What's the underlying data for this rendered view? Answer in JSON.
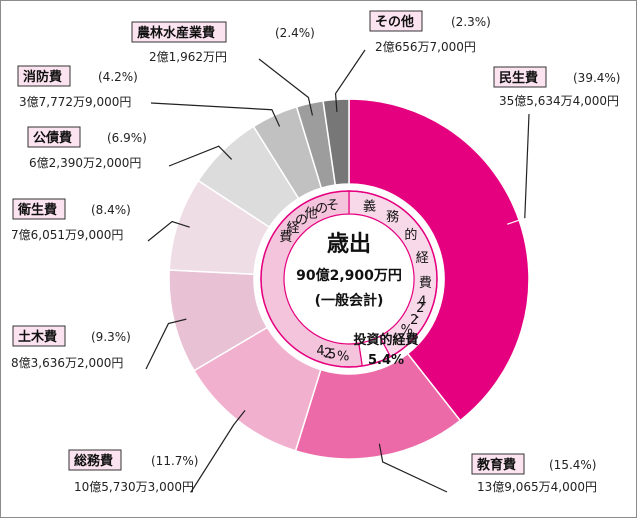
{
  "chart_data": {
    "type": "pie",
    "title": "歳出",
    "total": "90億2,900万円",
    "subtitle": "(一般会計)",
    "slices": [
      {
        "label": "民生費",
        "percent": 39.4,
        "percent_text": "(39.4%)",
        "amount": "35億5,634万4,000円",
        "color": "#e5007f"
      },
      {
        "label": "教育費",
        "percent": 15.4,
        "percent_text": "(15.4%)",
        "amount": "13億9,065万4,000円",
        "color": "#ec6aa8"
      },
      {
        "label": "総務費",
        "percent": 11.7,
        "percent_text": "(11.7%)",
        "amount": "10億5,730万3,000円",
        "color": "#f2b0cf"
      },
      {
        "label": "土木費",
        "percent": 9.3,
        "percent_text": "(9.3%)",
        "amount": "8億3,636万2,000円",
        "color": "#e8c1d4"
      },
      {
        "label": "衛生費",
        "percent": 8.4,
        "percent_text": "(8.4%)",
        "amount": "7億6,051万9,000円",
        "color": "#efdde6"
      },
      {
        "label": "公債費",
        "percent": 6.9,
        "percent_text": "(6.9%)",
        "amount": "6億2,390万2,000円",
        "color": "#dcdcdc"
      },
      {
        "label": "消防費",
        "percent": 4.2,
        "percent_text": "(4.2%)",
        "amount": "3億7,772万9,000円",
        "color": "#c1c1c1"
      },
      {
        "label": "農林水産業費",
        "percent": 2.4,
        "percent_text": "(2.4%)",
        "amount": "2億1,962万円",
        "color": "#9d9d9d"
      },
      {
        "label": "その他",
        "percent": 2.3,
        "percent_text": "(2.3%)",
        "amount": "2億656万7,000円",
        "color": "#777777"
      }
    ],
    "inner_ring": [
      {
        "label": "義務的経費",
        "percent_text": "42.2%",
        "percent": 42.2,
        "color": "#f8d9e9"
      },
      {
        "label": "投資的経費",
        "percent_text": "5.4%",
        "percent": 5.4,
        "color": "#ffffff"
      },
      {
        "label": "その他の経費",
        "percent_text": "52.4%",
        "percent": 52.4,
        "color": "#f4c4dc"
      }
    ]
  }
}
